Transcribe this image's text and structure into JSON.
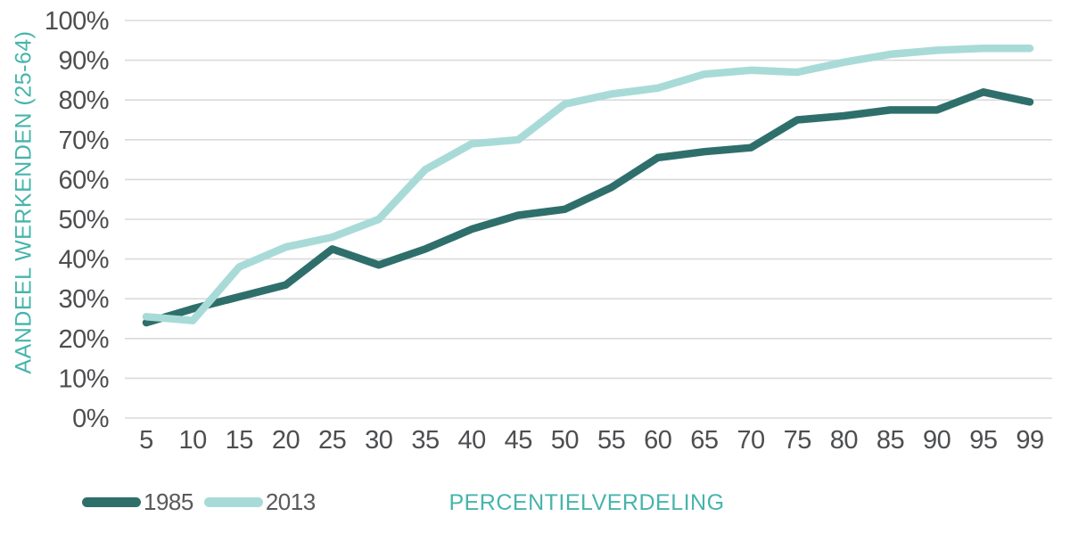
{
  "chart_data": {
    "type": "line",
    "title": "",
    "xlabel": "PERCENTIELVERDELING",
    "ylabel": "AANDEEL WERKENDEN (25-64)",
    "x_categories": [
      "5",
      "10",
      "15",
      "20",
      "25",
      "30",
      "35",
      "40",
      "45",
      "50",
      "55",
      "60",
      "65",
      "70",
      "75",
      "80",
      "85",
      "90",
      "95",
      "99"
    ],
    "yticks": [
      "0%",
      "10%",
      "20%",
      "30%",
      "40%",
      "50%",
      "60%",
      "70%",
      "80%",
      "90%",
      "100%"
    ],
    "ylim": [
      0,
      100
    ],
    "grid": "horizontal",
    "legend_position": "bottom-left",
    "series": [
      {
        "name": "1985",
        "color": "#2E6F6B",
        "values": [
          24,
          27.5,
          30.5,
          33.5,
          42.5,
          38.5,
          42.5,
          47.5,
          51,
          52.5,
          58,
          65.5,
          67,
          68,
          75,
          76,
          77.5,
          77.5,
          82,
          79.5
        ]
      },
      {
        "name": "2013",
        "color": "#A8DBD7",
        "values": [
          25.5,
          24.5,
          38,
          43,
          45.5,
          50,
          62.5,
          69,
          70,
          79,
          81.5,
          83,
          86.5,
          87.5,
          87,
          89.5,
          91.5,
          92.5,
          93,
          93
        ]
      }
    ],
    "colors": {
      "axis_title": "#46B4AC",
      "tick_label": "#4D4E50",
      "gridline": "#DADADA",
      "background": "#FFFFFF"
    }
  }
}
